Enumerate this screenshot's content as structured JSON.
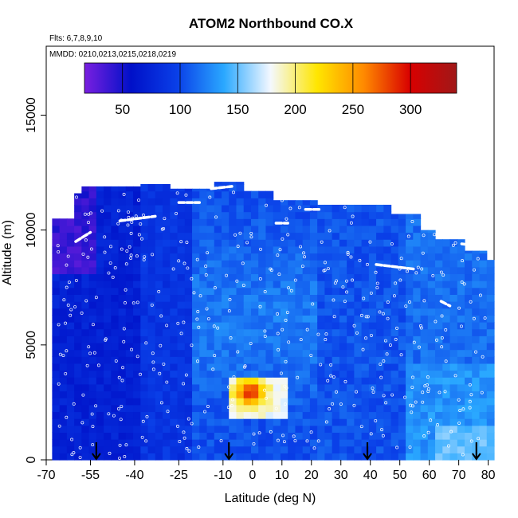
{
  "chart_data": {
    "type": "heatmap",
    "title": "ATOM2 Northbound CO.X",
    "subtitle_lines": [
      "Flts: 6,7,8,9,10",
      "MMDD: 0210,0213,0215,0218,0219"
    ],
    "xlabel": "Latitude (deg N)",
    "ylabel": "Altitude (m)",
    "xlim": [
      -70,
      82
    ],
    "ylim": [
      0,
      18000
    ],
    "x_ticks": [
      -70,
      -55,
      -40,
      -25,
      -10,
      0,
      10,
      20,
      30,
      40,
      50,
      60,
      70,
      80
    ],
    "y_ticks": [
      0,
      5000,
      10000,
      15000
    ],
    "colorbar": {
      "range": [
        17,
        340
      ],
      "ticks": [
        50,
        100,
        150,
        200,
        250,
        300
      ],
      "colors": [
        "#7a1fe0",
        "#0010c8",
        "#0a40e8",
        "#2aa8ff",
        "#f4f8ff",
        "#ffe600",
        "#ff8a00",
        "#d80000",
        "#a01818"
      ]
    },
    "colors": {
      "point": "#ffffff",
      "arrow": "#000000"
    },
    "arrow_latitudes": [
      -53,
      -8,
      39,
      76
    ],
    "points": "white circles mark sampled locations; dashed white lines mark flight legs near the top of each profile"
  }
}
